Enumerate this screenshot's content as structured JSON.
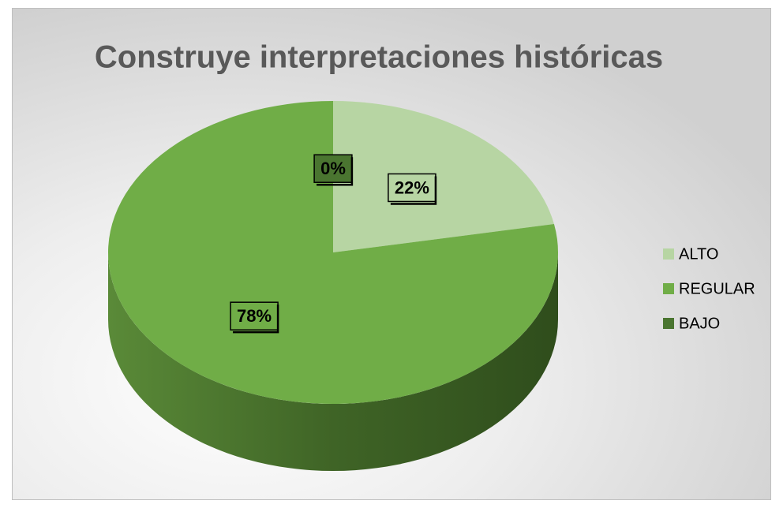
{
  "chart_data": {
    "type": "pie",
    "title": "Construye interpretaciones históricas",
    "categories": [
      "ALTO",
      "REGULAR",
      "BAJO"
    ],
    "values": [
      22,
      78,
      0
    ],
    "value_labels": [
      "22%",
      "78%",
      "0%"
    ],
    "colors": [
      "#b7d5a3",
      "#70ad47",
      "#4a7530"
    ],
    "legend": "right"
  }
}
